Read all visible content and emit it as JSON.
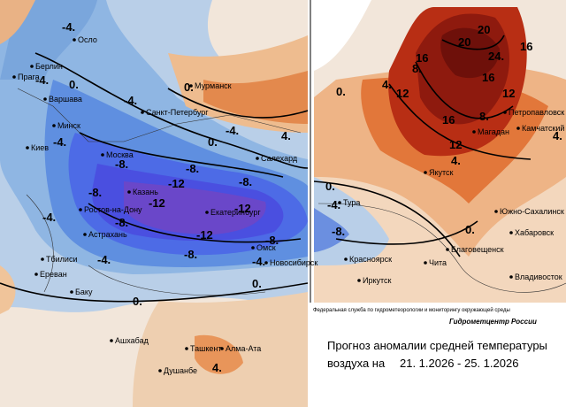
{
  "cities": [
    "Осло",
    "Берлин",
    "Прага",
    "Варшава",
    "Минск",
    "Киев",
    "Мурманск",
    "Санкт-Петербург",
    "Москва",
    "Салехард",
    "Казань",
    "Екатеринбург",
    "Ростов-на-Дону",
    "Астрахань",
    "Тбилиси",
    "Ереван",
    "Баку",
    "Омск",
    "Новосибирск",
    "Ашхабад",
    "Ташкент",
    "Алма-Ата",
    "Душанбе",
    "Якутск",
    "Тура",
    "Красноярск",
    "Иркутск",
    "Чита",
    "Благовещенск",
    "Хабаровск",
    "Владивосток",
    "Южно-Сахалинск",
    "Магадан",
    "Петропавловск",
    "Камчатский"
  ],
  "contours": [
    "-4.",
    "-4.",
    "0.",
    "-4.",
    "-4.",
    "0.",
    "-4.",
    "4.",
    "0.",
    "-8.",
    "-8.",
    "-8.",
    "-12",
    "-12",
    "-12",
    "-12",
    "-8.",
    "-8.",
    "-8.",
    "-8.",
    "-4.",
    "-4.",
    "-4.",
    "0.",
    "0.",
    "4.",
    "0.",
    "-4.",
    "-8.",
    "0.",
    "4.",
    "8.",
    "12",
    "16",
    "16",
    "16",
    "20",
    "20",
    "24.",
    "16",
    "12",
    "12",
    "8.",
    "4.",
    "0.",
    "4."
  ],
  "footer": {
    "agency": "Федеральная служба по гидрометеорологии и мониторингу окружающей среды",
    "center": "Гидрометцентр России",
    "title": "Прогноз аномалии средней температуры",
    "period_label": "воздуха на",
    "period": "21. 1.2026 - 25. 1.2026"
  }
}
